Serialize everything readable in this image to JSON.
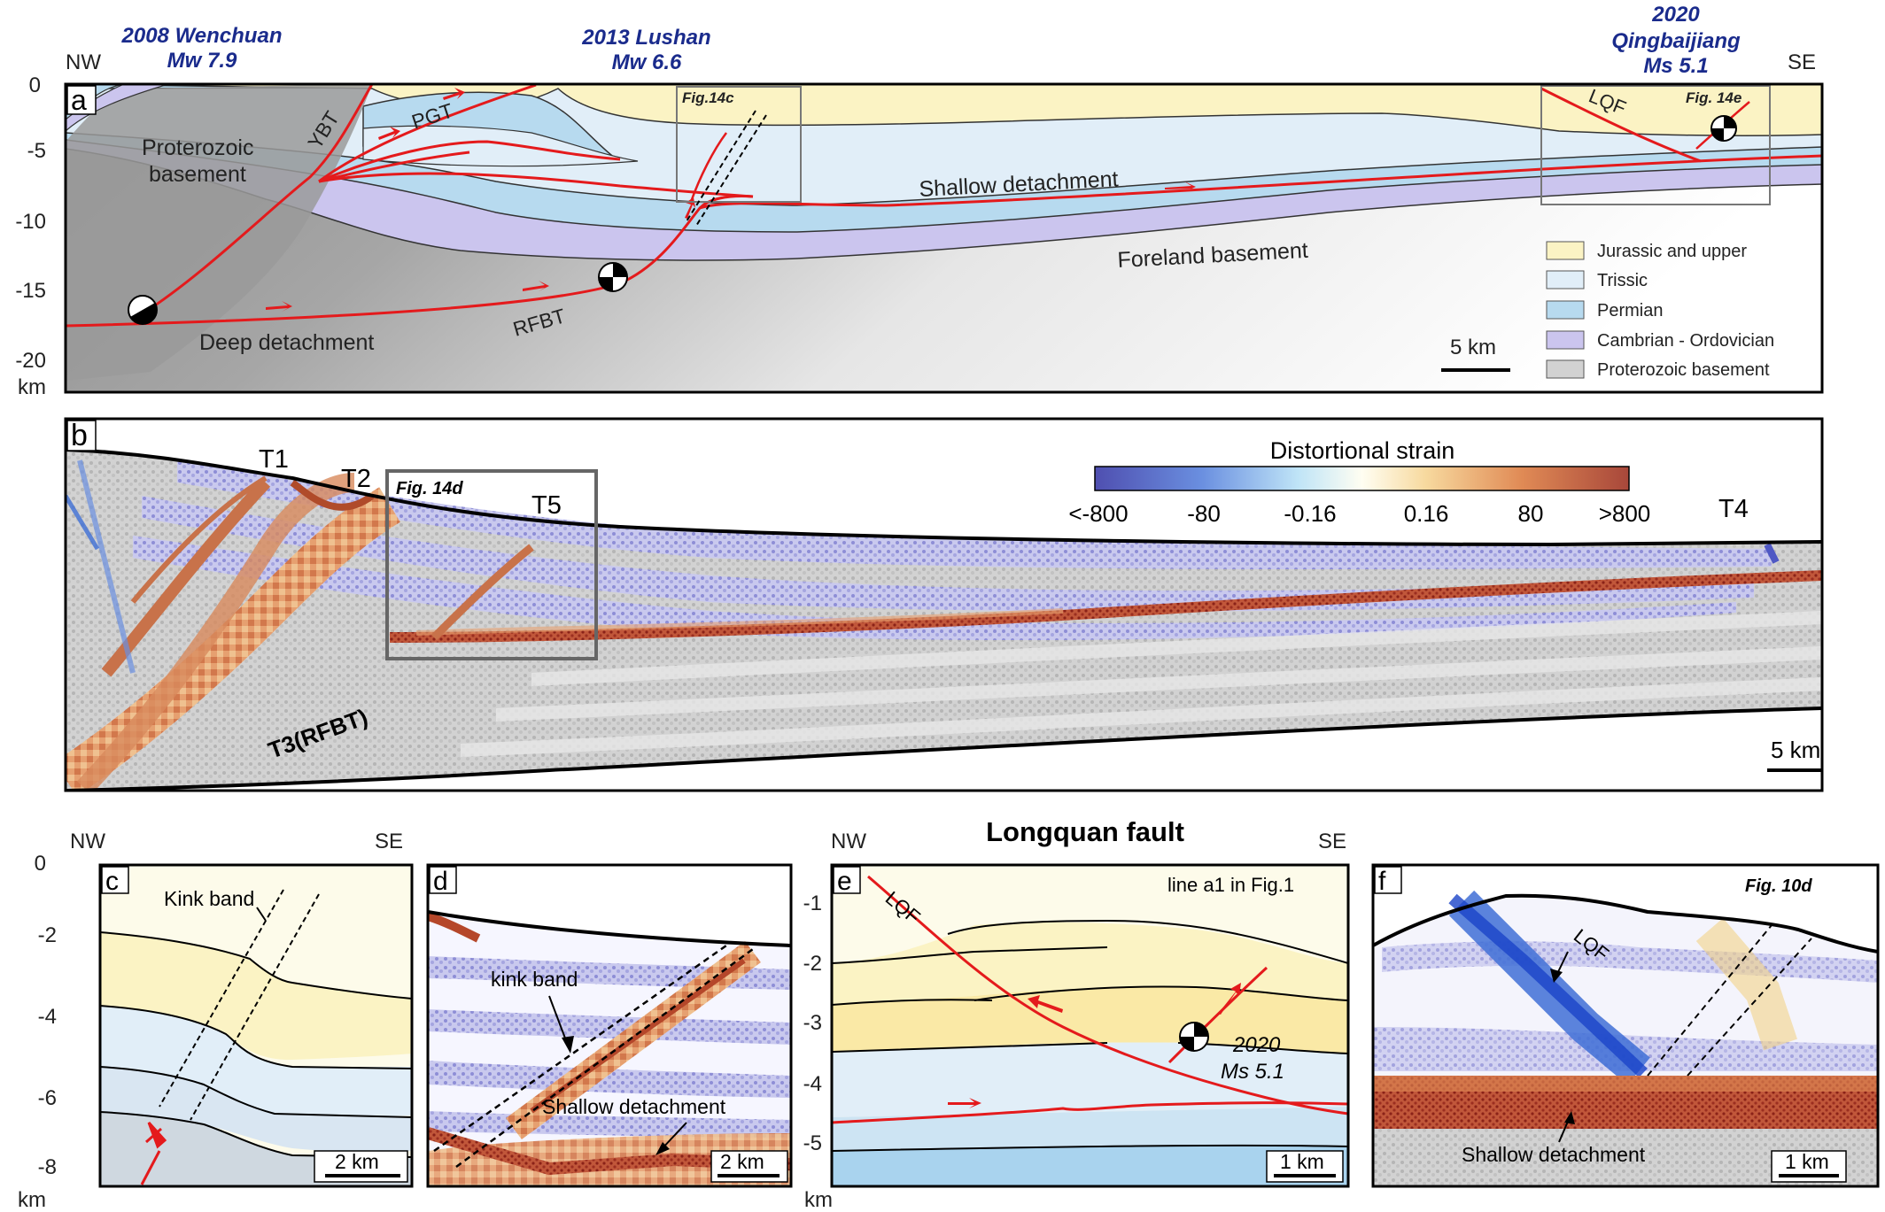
{
  "colors": {
    "jurassic": "#fbf3c4",
    "triassic": "#e1eef8",
    "permian": "#b7daef",
    "cambrian": "#cbc5ee",
    "proterozoic": "#9a9a9a",
    "fault": "#e41a1c",
    "quake_label": "#1a2b8c",
    "strain_low": "#4f58c4",
    "strain_high": "#b5472a"
  },
  "panel_a": {
    "letter": "a",
    "nw": "NW",
    "se": "SE",
    "eq1": {
      "name": "2008 Wenchuan",
      "mag": "Mw 7.9"
    },
    "eq2": {
      "name": "2013 Lushan",
      "mag": "Mw 6.6"
    },
    "eq3": {
      "year": "2020",
      "name": "Qingbaijiang",
      "mag": "Ms 5.1"
    },
    "y_ticks": [
      "0",
      "-5",
      "-10",
      "-15",
      "-20"
    ],
    "y_unit": "km",
    "labels": {
      "proterozoic_1": "Proterozoic",
      "proterozoic_2": "basement",
      "ybt": "YBT",
      "pgt": "PGT",
      "fig14c": "Fig.14c",
      "lqf": "LQF",
      "fig14e": "Fig. 14e",
      "shallow": "Shallow detachment",
      "foreland": "Foreland basement",
      "deep": "Deep detachment",
      "rfbt": "RFBT"
    },
    "legend": [
      "Jurassic and upper",
      "Trissic",
      "Permian",
      "Cambrian - Ordovician",
      "Proterozoic basement"
    ],
    "scale": "5 km"
  },
  "panel_b": {
    "letter": "b",
    "thrusts": {
      "t1": "T1",
      "t2": "T2",
      "t3": "T3(RFBT)",
      "t4": "T4",
      "t5": "T5"
    },
    "fig_ref": "Fig. 14d",
    "colorbar_title": "Distortional strain",
    "colorbar_ticks": [
      "<-800",
      "-80",
      "-0.16",
      "0.16",
      "80",
      ">800"
    ],
    "scale": "5 km"
  },
  "panel_c": {
    "letter": "c",
    "nw": "NW",
    "se": "SE",
    "y_ticks": [
      "0",
      "-2",
      "-4",
      "-6",
      "-8"
    ],
    "y_unit": "km",
    "kink": "Kink band",
    "scale": "2 km"
  },
  "panel_d": {
    "letter": "d",
    "kink": "kink band",
    "shallow": "Shallow detachment",
    "scale": "2 km"
  },
  "panel_e": {
    "letter": "e",
    "title": "Longquan fault",
    "nw": "NW",
    "se": "SE",
    "note": "line a1 in Fig.1",
    "lqf": "LQF",
    "y_ticks": [
      "-1",
      "-2",
      "-3",
      "-4",
      "-5"
    ],
    "y_unit": "km",
    "eq_year": "2020",
    "eq_mag": "Ms 5.1",
    "scale": "1 km"
  },
  "panel_f": {
    "letter": "f",
    "fig_ref": "Fig. 10d",
    "lqf": "LQF",
    "shallow": "Shallow detachment",
    "scale": "1 km"
  }
}
